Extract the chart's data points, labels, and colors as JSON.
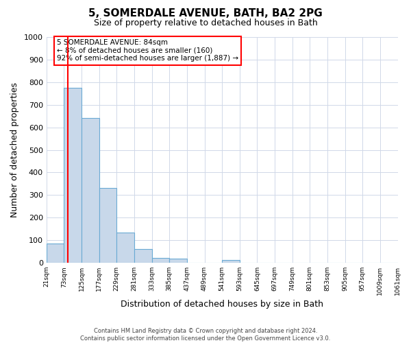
{
  "title": "5, SOMERDALE AVENUE, BATH, BA2 2PG",
  "subtitle": "Size of property relative to detached houses in Bath",
  "xlabel": "Distribution of detached houses by size in Bath",
  "ylabel": "Number of detached properties",
  "bar_left_edges": [
    21,
    73,
    125,
    177,
    229,
    281,
    333,
    385,
    437,
    489,
    541,
    593,
    645,
    697,
    749,
    801,
    853,
    905,
    957,
    1009
  ],
  "bar_heights": [
    85,
    775,
    640,
    330,
    135,
    60,
    22,
    18,
    0,
    0,
    12,
    0,
    0,
    0,
    0,
    0,
    0,
    0,
    0,
    0
  ],
  "bin_width": 52,
  "bar_color": "#c8d8ea",
  "bar_edge_color": "#6aaad4",
  "property_line_x": 84,
  "ylim": [
    0,
    1000
  ],
  "yticks": [
    0,
    100,
    200,
    300,
    400,
    500,
    600,
    700,
    800,
    900,
    1000
  ],
  "xtick_labels": [
    "21sqm",
    "73sqm",
    "125sqm",
    "177sqm",
    "229sqm",
    "281sqm",
    "333sqm",
    "385sqm",
    "437sqm",
    "489sqm",
    "541sqm",
    "593sqm",
    "645sqm",
    "697sqm",
    "749sqm",
    "801sqm",
    "853sqm",
    "905sqm",
    "957sqm",
    "1009sqm",
    "1061sqm"
  ],
  "annotation_title": "5 SOMERDALE AVENUE: 84sqm",
  "annotation_line1": "← 8% of detached houses are smaller (160)",
  "annotation_line2": "92% of semi-detached houses are larger (1,887) →",
  "footer_line1": "Contains HM Land Registry data © Crown copyright and database right 2024.",
  "footer_line2": "Contains public sector information licensed under the Open Government Licence v3.0.",
  "background_color": "#ffffff",
  "grid_color": "#d0d8e8"
}
